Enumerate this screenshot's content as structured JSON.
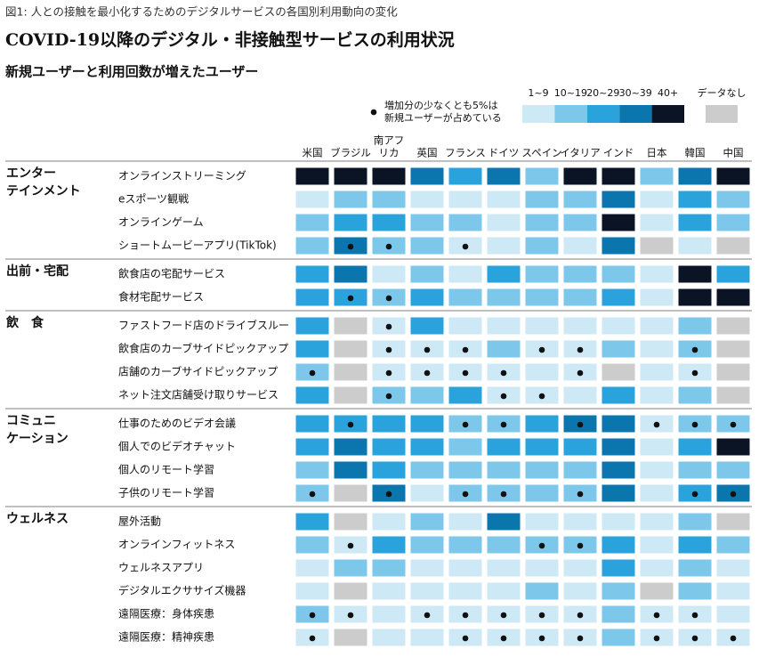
{
  "caption": "図1: 人との接触を最小化するためのデジタルサービスの各国別利用動向の変化",
  "title": "COVID-19以降のデジタル・非接触型サービスの利用状況",
  "subtitle": "新規ユーザーと利用回数が増えたユーザー",
  "dot_note": [
    "増加分の少なくとも5%は",
    "新規ユーザーが占めている"
  ],
  "legend": [
    {
      "label": "1~9",
      "color": "#cde9f6"
    },
    {
      "label": "10~19",
      "color": "#7dc7ea"
    },
    {
      "label": "20~29",
      "color": "#2aa3dc"
    },
    {
      "label": "30~39",
      "color": "#0b76ad"
    },
    {
      "label": "40+",
      "color": "#0a1424"
    }
  ],
  "no_data": {
    "label": "データなし",
    "color": "#cccccc"
  },
  "countries": [
    [
      "米国"
    ],
    [
      "ブラジル"
    ],
    [
      "南アフ",
      "リカ"
    ],
    [
      "英国"
    ],
    [
      "フランス"
    ],
    [
      "ドイツ"
    ],
    [
      "スペイン"
    ],
    [
      "イタリア"
    ],
    [
      "インド"
    ],
    [
      "日本"
    ],
    [
      "韓国"
    ],
    [
      "中国"
    ]
  ],
  "groups": [
    {
      "name": [
        "エンター",
        "テインメント"
      ],
      "rows": [
        {
          "label": "オンラインストリーミング",
          "cells": [
            "40+",
            "40+",
            "40+",
            "30~39",
            "20~29",
            "30~39",
            "10~19",
            "40+",
            "40+",
            "10~19",
            "30~39",
            "40+"
          ],
          "dots": [
            0,
            0,
            0,
            0,
            0,
            0,
            0,
            0,
            0,
            0,
            0,
            0
          ]
        },
        {
          "label": "eスポーツ観戦",
          "cells": [
            "1~9",
            "10~19",
            "10~19",
            "1~9",
            "1~9",
            "1~9",
            "10~19",
            "10~19",
            "30~39",
            "1~9",
            "20~29",
            "10~19"
          ],
          "dots": [
            0,
            0,
            0,
            0,
            0,
            0,
            0,
            0,
            0,
            0,
            0,
            0
          ]
        },
        {
          "label": "オンラインゲーム",
          "cells": [
            "10~19",
            "20~29",
            "20~29",
            "10~19",
            "10~19",
            "1~9",
            "10~19",
            "10~19",
            "40+",
            "1~9",
            "20~29",
            "10~19"
          ],
          "dots": [
            0,
            0,
            0,
            0,
            0,
            0,
            0,
            0,
            0,
            0,
            0,
            0
          ]
        },
        {
          "label": "ショートムービーアプリ(TikTok)",
          "cells": [
            "10~19",
            "30~39",
            "10~19",
            "10~19",
            "1~9",
            "1~9",
            "10~19",
            "1~9",
            "30~39",
            "データなし",
            "1~9",
            "データなし"
          ],
          "dots": [
            0,
            1,
            1,
            0,
            1,
            0,
            0,
            0,
            0,
            0,
            0,
            0
          ]
        }
      ]
    },
    {
      "name": [
        "出前・宅配"
      ],
      "rows": [
        {
          "label": "飲食店の宅配サービス",
          "cells": [
            "20~29",
            "30~39",
            "1~9",
            "10~19",
            "1~9",
            "20~29",
            "10~19",
            "10~19",
            "10~19",
            "1~9",
            "40+",
            "20~29"
          ],
          "dots": [
            0,
            0,
            0,
            0,
            0,
            0,
            0,
            0,
            0,
            0,
            0,
            0
          ]
        },
        {
          "label": "食材宅配サービス",
          "cells": [
            "20~29",
            "20~29",
            "10~19",
            "20~29",
            "10~19",
            "10~19",
            "10~19",
            "10~19",
            "20~29",
            "1~9",
            "40+",
            "40+"
          ],
          "dots": [
            0,
            1,
            1,
            0,
            0,
            0,
            0,
            0,
            0,
            0,
            0,
            0
          ]
        }
      ]
    },
    {
      "name": [
        "飲　食"
      ],
      "rows": [
        {
          "label": "ファストフード店のドライブスルー",
          "cells": [
            "20~29",
            "データなし",
            "1~9",
            "20~29",
            "1~9",
            "1~9",
            "1~9",
            "1~9",
            "1~9",
            "1~9",
            "10~19",
            "データなし"
          ],
          "dots": [
            0,
            0,
            1,
            0,
            0,
            0,
            0,
            0,
            0,
            0,
            0,
            0
          ]
        },
        {
          "label": "飲食店のカーブサイドピックアップ",
          "cells": [
            "20~29",
            "データなし",
            "1~9",
            "1~9",
            "1~9",
            "10~19",
            "1~9",
            "1~9",
            "10~19",
            "1~9",
            "10~19",
            "データなし"
          ],
          "dots": [
            0,
            0,
            1,
            1,
            1,
            0,
            1,
            1,
            0,
            0,
            1,
            0
          ]
        },
        {
          "label": "店舗のカーブサイドピックアップ",
          "cells": [
            "10~19",
            "データなし",
            "1~9",
            "1~9",
            "1~9",
            "1~9",
            "1~9",
            "1~9",
            "データなし",
            "1~9",
            "1~9",
            "データなし"
          ],
          "dots": [
            1,
            0,
            1,
            1,
            1,
            1,
            0,
            1,
            0,
            0,
            1,
            0
          ]
        },
        {
          "label": "ネット注文店舗受け取りサービス",
          "cells": [
            "20~29",
            "データなし",
            "10~19",
            "10~19",
            "20~29",
            "1~9",
            "1~9",
            "1~9",
            "20~29",
            "1~9",
            "10~19",
            "データなし"
          ],
          "dots": [
            0,
            0,
            1,
            0,
            0,
            1,
            1,
            0,
            0,
            0,
            0,
            0
          ]
        }
      ]
    },
    {
      "name": [
        "コミュニ",
        "ケーション"
      ],
      "rows": [
        {
          "label": "仕事のためのビデオ会議",
          "cells": [
            "20~29",
            "20~29",
            "20~29",
            "20~29",
            "10~19",
            "10~19",
            "20~29",
            "30~39",
            "30~39",
            "1~9",
            "10~19",
            "10~19"
          ],
          "dots": [
            0,
            1,
            0,
            0,
            1,
            1,
            0,
            1,
            0,
            1,
            1,
            1
          ]
        },
        {
          "label": "個人でのビデオチャット",
          "cells": [
            "20~29",
            "30~39",
            "20~29",
            "20~29",
            "10~19",
            "20~29",
            "20~29",
            "20~29",
            "30~39",
            "1~9",
            "20~29",
            "40+"
          ],
          "dots": [
            0,
            0,
            0,
            0,
            0,
            0,
            0,
            0,
            0,
            0,
            0,
            0
          ]
        },
        {
          "label": "個人のリモート学習",
          "cells": [
            "10~19",
            "30~39",
            "20~29",
            "10~19",
            "10~19",
            "10~19",
            "10~19",
            "10~19",
            "30~39",
            "1~9",
            "10~19",
            "10~19"
          ],
          "dots": [
            0,
            0,
            0,
            0,
            0,
            0,
            0,
            0,
            0,
            0,
            0,
            0
          ]
        },
        {
          "label": "子供のリモート学習",
          "cells": [
            "10~19",
            "データなし",
            "30~39",
            "1~9",
            "10~19",
            "10~19",
            "10~19",
            "10~19",
            "30~39",
            "1~9",
            "20~29",
            "30~39"
          ],
          "dots": [
            1,
            0,
            1,
            0,
            1,
            1,
            0,
            1,
            0,
            0,
            1,
            1
          ]
        }
      ]
    },
    {
      "name": [
        "ウェルネス"
      ],
      "rows": [
        {
          "label": "屋外活動",
          "cells": [
            "20~29",
            "データなし",
            "1~9",
            "10~19",
            "1~9",
            "30~39",
            "1~9",
            "1~9",
            "1~9",
            "1~9",
            "10~19",
            "データなし"
          ],
          "dots": [
            0,
            0,
            0,
            0,
            0,
            0,
            0,
            0,
            0,
            0,
            0,
            0
          ]
        },
        {
          "label": "オンラインフィットネス",
          "cells": [
            "10~19",
            "1~9",
            "20~29",
            "10~19",
            "10~19",
            "10~19",
            "10~19",
            "10~19",
            "20~29",
            "1~9",
            "20~29",
            "10~19"
          ],
          "dots": [
            0,
            1,
            0,
            0,
            0,
            0,
            1,
            1,
            0,
            0,
            0,
            0
          ]
        },
        {
          "label": "ウェルネスアプリ",
          "cells": [
            "1~9",
            "10~19",
            "10~19",
            "1~9",
            "1~9",
            "1~9",
            "1~9",
            "1~9",
            "20~29",
            "1~9",
            "10~19",
            "1~9"
          ],
          "dots": [
            0,
            0,
            0,
            0,
            0,
            0,
            0,
            0,
            0,
            0,
            0,
            0
          ]
        },
        {
          "label": "デジタルエクササイズ機器",
          "cells": [
            "1~9",
            "データなし",
            "1~9",
            "1~9",
            "1~9",
            "1~9",
            "10~19",
            "1~9",
            "10~19",
            "データなし",
            "10~19",
            "1~9"
          ],
          "dots": [
            0,
            0,
            0,
            0,
            0,
            0,
            0,
            0,
            0,
            0,
            0,
            0
          ]
        },
        {
          "label": "遠隔医療：身体疾患",
          "cells": [
            "10~19",
            "1~9",
            "1~9",
            "1~9",
            "1~9",
            "1~9",
            "1~9",
            "1~9",
            "10~19",
            "1~9",
            "1~9",
            "1~9"
          ],
          "dots": [
            1,
            1,
            0,
            1,
            1,
            1,
            1,
            1,
            0,
            1,
            1,
            0
          ]
        },
        {
          "label": "遠隔医療：精神疾患",
          "cells": [
            "1~9",
            "データなし",
            "1~9",
            "1~9",
            "1~9",
            "1~9",
            "1~9",
            "1~9",
            "10~19",
            "1~9",
            "1~9",
            "1~9"
          ],
          "dots": [
            1,
            0,
            0,
            0,
            1,
            1,
            1,
            1,
            0,
            1,
            1,
            1
          ]
        }
      ]
    }
  ]
}
